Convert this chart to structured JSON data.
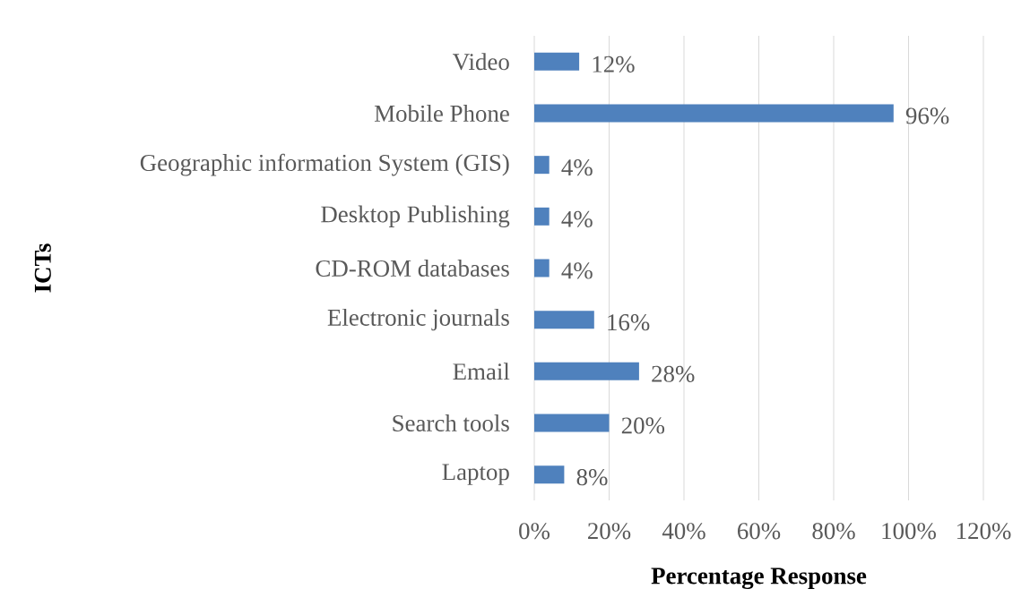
{
  "chart_data": {
    "type": "bar",
    "orientation": "horizontal",
    "categories": [
      "Video",
      "Mobile Phone",
      "Geographic information System (GIS)",
      "Desktop Publishing",
      "CD-ROM databases",
      "Electronic journals",
      "Email",
      "Search tools",
      "Laptop"
    ],
    "values": [
      12,
      96,
      4,
      4,
      4,
      16,
      28,
      20,
      8
    ],
    "value_labels": [
      "12%",
      "96%",
      "4%",
      "4%",
      "4%",
      "16%",
      "28%",
      "20%",
      "8%"
    ],
    "color": "#4f81bd",
    "xlim": [
      0,
      120
    ],
    "xticks": [
      {
        "value": 0,
        "label": "0%"
      },
      {
        "value": 20,
        "label": "20%"
      },
      {
        "value": 40,
        "label": "40%"
      },
      {
        "value": 60,
        "label": "60%"
      },
      {
        "value": 80,
        "label": "80%"
      },
      {
        "value": 100,
        "label": "100%"
      },
      {
        "value": 120,
        "label": "120%"
      }
    ],
    "xlabel": "Percentage Response",
    "ylabel": "ICTs",
    "grid": "x"
  }
}
